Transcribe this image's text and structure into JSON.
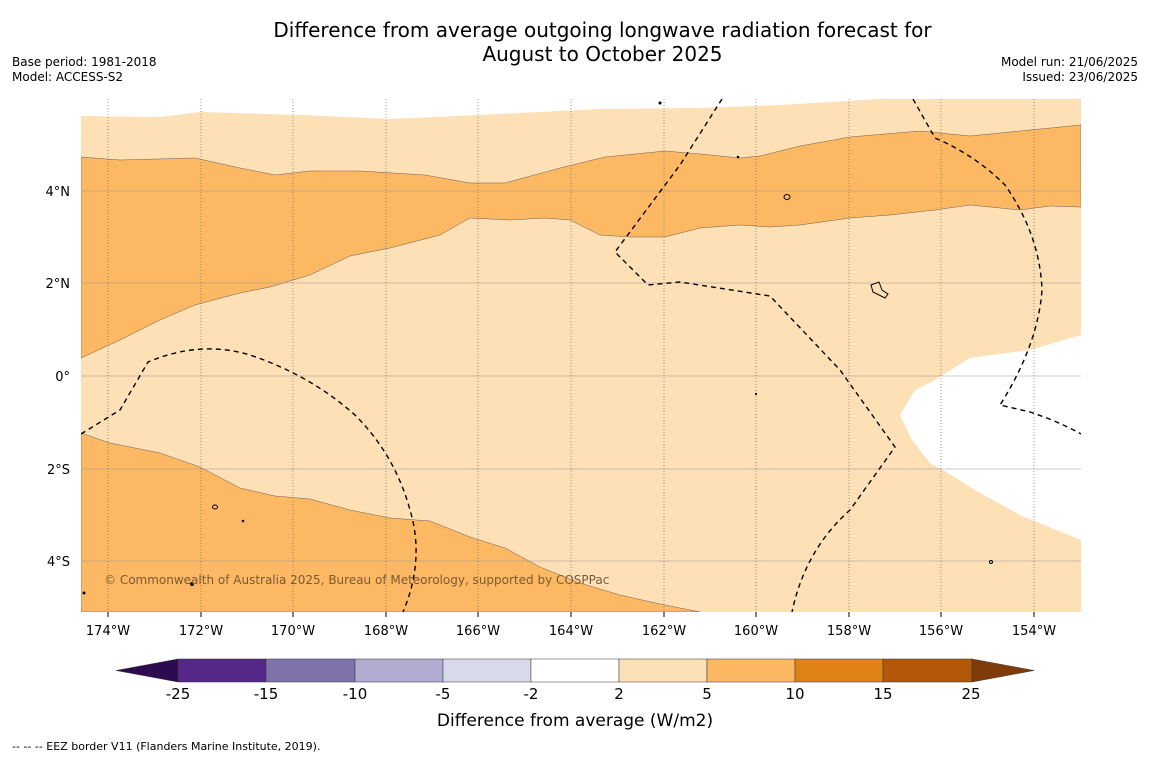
{
  "title_line1": "Difference from average outgoing longwave radiation forecast for",
  "title_line2": "August to October 2025",
  "base_period": "Base period: 1981-2018",
  "model": "Model: ACCESS-S2",
  "model_run": "Model run: 21/06/2025",
  "issued": "Issued: 23/06/2025",
  "copyright": "© Commonwealth of Australia 2025, Bureau of Meteorology, supported by COSPPac",
  "footnote": "--  --  -- EEZ border V11 (Flanders Marine Institute, 2019).",
  "lon_labels": [
    "174°W",
    "172°W",
    "170°W",
    "168°W",
    "166°W",
    "164°W",
    "162°W",
    "160°W",
    "158°W",
    "156°W",
    "154°W"
  ],
  "lat_labels": [
    "4°N",
    "2°N",
    "0°",
    "2°S",
    "4°S"
  ],
  "colorbar": {
    "title": "Difference from average (W/m2)",
    "ticks": [
      "-25",
      "-15",
      "-10",
      "-5",
      "-2",
      "2",
      "5",
      "10",
      "15",
      "25"
    ],
    "colors": [
      "#2d0b50",
      "#542788",
      "#8073ac",
      "#b2abd2",
      "#d8daeb",
      "#ffffff",
      "#fee0b6",
      "#fdb863",
      "#e08214",
      "#b35806",
      "#7f3b08"
    ]
  },
  "map_colors": {
    "band_2_5": "#fee0b6",
    "band_5_10": "#fdb863",
    "neutral": "#ffffff"
  }
}
